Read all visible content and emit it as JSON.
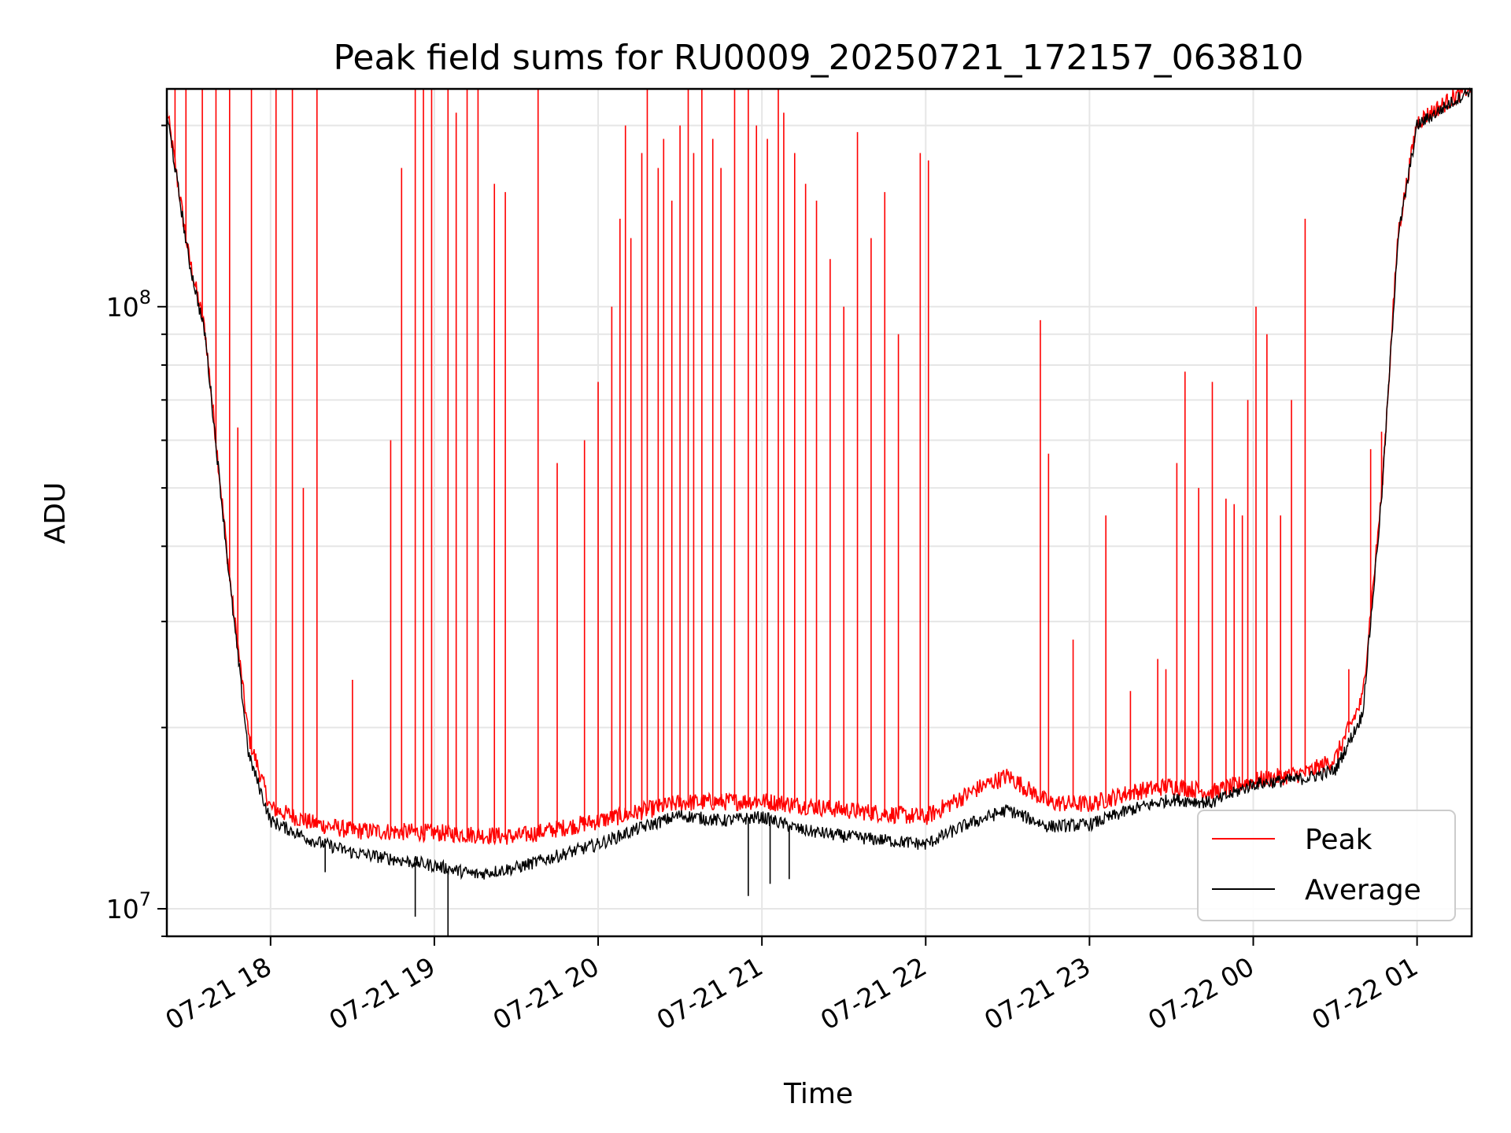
{
  "chart_data": {
    "type": "line",
    "title": "Peak field sums for RU0009_20250721_172157_063810",
    "xlabel": "Time",
    "ylabel": "ADU",
    "y_scale": "log",
    "ylim": [
      9000000,
      230000000
    ],
    "xlim": [
      "2025-07-21 17:22",
      "2025-07-22 01:20"
    ],
    "x_ticks": [
      {
        "label": "07-21 18",
        "time": "2025-07-21 18:00"
      },
      {
        "label": "07-21 19",
        "time": "2025-07-21 19:00"
      },
      {
        "label": "07-21 20",
        "time": "2025-07-21 20:00"
      },
      {
        "label": "07-21 21",
        "time": "2025-07-21 21:00"
      },
      {
        "label": "07-21 22",
        "time": "2025-07-21 22:00"
      },
      {
        "label": "07-21 23",
        "time": "2025-07-21 23:00"
      },
      {
        "label": "07-22 00",
        "time": "2025-07-22 00:00"
      },
      {
        "label": "07-22 01",
        "time": "2025-07-22 01:00"
      }
    ],
    "y_ticks": [
      {
        "base": "10",
        "exp": "7",
        "value": 10000000
      },
      {
        "base": "10",
        "exp": "8",
        "value": 100000000
      }
    ],
    "grid": true,
    "legend_position": "lower-right",
    "series": [
      {
        "name": "Peak",
        "color": "#ff0000",
        "baseline": [
          [
            "2025-07-21 17:22",
            210000000
          ],
          [
            "2025-07-21 17:30",
            120000000
          ],
          [
            "2025-07-21 17:36",
            90000000
          ],
          [
            "2025-07-21 17:45",
            35000000
          ],
          [
            "2025-07-21 17:52",
            19000000
          ],
          [
            "2025-07-21 18:00",
            14500000
          ],
          [
            "2025-07-21 18:15",
            13700000
          ],
          [
            "2025-07-21 18:30",
            13300000
          ],
          [
            "2025-07-21 19:00",
            13200000
          ],
          [
            "2025-07-21 19:30",
            13000000
          ],
          [
            "2025-07-21 20:00",
            13800000
          ],
          [
            "2025-07-21 20:30",
            14800000
          ],
          [
            "2025-07-21 21:00",
            14900000
          ],
          [
            "2025-07-21 21:30",
            14400000
          ],
          [
            "2025-07-21 22:00",
            14000000
          ],
          [
            "2025-07-21 22:20",
            15700000
          ],
          [
            "2025-07-21 22:30",
            16400000
          ],
          [
            "2025-07-21 22:45",
            14800000
          ],
          [
            "2025-07-21 23:00",
            14700000
          ],
          [
            "2025-07-21 23:15",
            15400000
          ],
          [
            "2025-07-21 23:30",
            15800000
          ],
          [
            "2025-07-21 23:45",
            15400000
          ],
          [
            "2025-07-22 00:00",
            16100000
          ],
          [
            "2025-07-22 00:20",
            16600000
          ],
          [
            "2025-07-22 00:30",
            17500000
          ],
          [
            "2025-07-22 00:40",
            22000000
          ],
          [
            "2025-07-22 00:47",
            48000000
          ],
          [
            "2025-07-22 00:53",
            130000000
          ],
          [
            "2025-07-22 01:00",
            200000000
          ],
          [
            "2025-07-22 01:20",
            230000000
          ]
        ],
        "spikes": [
          [
            "2025-07-21 17:25",
            230000000
          ],
          [
            "2025-07-21 17:29",
            230000000
          ],
          [
            "2025-07-21 17:35",
            230000000
          ],
          [
            "2025-07-21 17:40",
            230000000
          ],
          [
            "2025-07-21 17:45",
            230000000
          ],
          [
            "2025-07-21 17:48",
            63000000
          ],
          [
            "2025-07-21 17:53",
            230000000
          ],
          [
            "2025-07-21 18:02",
            230000000
          ],
          [
            "2025-07-21 18:08",
            230000000
          ],
          [
            "2025-07-21 18:12",
            50000000
          ],
          [
            "2025-07-21 18:17",
            230000000
          ],
          [
            "2025-07-21 18:30",
            24000000
          ],
          [
            "2025-07-21 18:44",
            60000000
          ],
          [
            "2025-07-21 18:48",
            170000000
          ],
          [
            "2025-07-21 18:53",
            230000000
          ],
          [
            "2025-07-21 18:56",
            230000000
          ],
          [
            "2025-07-21 18:59",
            230000000
          ],
          [
            "2025-07-21 19:05",
            230000000
          ],
          [
            "2025-07-21 19:08",
            210000000
          ],
          [
            "2025-07-21 19:12",
            230000000
          ],
          [
            "2025-07-21 19:16",
            230000000
          ],
          [
            "2025-07-21 19:22",
            160000000
          ],
          [
            "2025-07-21 19:26",
            155000000
          ],
          [
            "2025-07-21 19:38",
            230000000
          ],
          [
            "2025-07-21 19:45",
            55000000
          ],
          [
            "2025-07-21 19:55",
            60000000
          ],
          [
            "2025-07-21 20:00",
            75000000
          ],
          [
            "2025-07-21 20:05",
            100000000
          ],
          [
            "2025-07-21 20:08",
            140000000
          ],
          [
            "2025-07-21 20:10",
            200000000
          ],
          [
            "2025-07-21 20:12",
            130000000
          ],
          [
            "2025-07-21 20:16",
            180000000
          ],
          [
            "2025-07-21 20:18",
            230000000
          ],
          [
            "2025-07-21 20:22",
            170000000
          ],
          [
            "2025-07-21 20:24",
            190000000
          ],
          [
            "2025-07-21 20:27",
            150000000
          ],
          [
            "2025-07-21 20:30",
            200000000
          ],
          [
            "2025-07-21 20:33",
            230000000
          ],
          [
            "2025-07-21 20:35",
            180000000
          ],
          [
            "2025-07-21 20:38",
            230000000
          ],
          [
            "2025-07-21 20:42",
            190000000
          ],
          [
            "2025-07-21 20:45",
            170000000
          ],
          [
            "2025-07-21 20:50",
            230000000
          ],
          [
            "2025-07-21 20:55",
            230000000
          ],
          [
            "2025-07-21 20:58",
            200000000
          ],
          [
            "2025-07-21 21:02",
            190000000
          ],
          [
            "2025-07-21 21:06",
            230000000
          ],
          [
            "2025-07-21 21:08",
            210000000
          ],
          [
            "2025-07-21 21:12",
            180000000
          ],
          [
            "2025-07-21 21:16",
            160000000
          ],
          [
            "2025-07-21 21:20",
            150000000
          ],
          [
            "2025-07-21 21:25",
            120000000
          ],
          [
            "2025-07-21 21:30",
            100000000
          ],
          [
            "2025-07-21 21:35",
            195000000
          ],
          [
            "2025-07-21 21:40",
            130000000
          ],
          [
            "2025-07-21 21:45",
            155000000
          ],
          [
            "2025-07-21 21:50",
            90000000
          ],
          [
            "2025-07-21 21:58",
            180000000
          ],
          [
            "2025-07-21 22:01",
            175000000
          ],
          [
            "2025-07-21 22:42",
            95000000
          ],
          [
            "2025-07-21 22:45",
            57000000
          ],
          [
            "2025-07-21 22:54",
            28000000
          ],
          [
            "2025-07-21 23:06",
            45000000
          ],
          [
            "2025-07-21 23:15",
            23000000
          ],
          [
            "2025-07-21 23:25",
            26000000
          ],
          [
            "2025-07-21 23:28",
            25000000
          ],
          [
            "2025-07-21 23:32",
            55000000
          ],
          [
            "2025-07-21 23:35",
            78000000
          ],
          [
            "2025-07-21 23:40",
            50000000
          ],
          [
            "2025-07-21 23:45",
            75000000
          ],
          [
            "2025-07-21 23:50",
            48000000
          ],
          [
            "2025-07-21 23:53",
            47000000
          ],
          [
            "2025-07-21 23:56",
            45000000
          ],
          [
            "2025-07-21 23:58",
            70000000
          ],
          [
            "2025-07-22 00:01",
            100000000
          ],
          [
            "2025-07-22 00:05",
            90000000
          ],
          [
            "2025-07-22 00:10",
            45000000
          ],
          [
            "2025-07-22 00:14",
            70000000
          ],
          [
            "2025-07-22 00:19",
            140000000
          ],
          [
            "2025-07-22 00:35",
            25000000
          ],
          [
            "2025-07-22 00:43",
            58000000
          ],
          [
            "2025-07-22 00:47",
            62000000
          ]
        ]
      },
      {
        "name": "Average",
        "color": "#000000",
        "points": [
          [
            "2025-07-21 17:22",
            210000000
          ],
          [
            "2025-07-21 17:30",
            120000000
          ],
          [
            "2025-07-21 17:36",
            90000000
          ],
          [
            "2025-07-21 17:45",
            35000000
          ],
          [
            "2025-07-21 17:52",
            18000000
          ],
          [
            "2025-07-21 18:00",
            14000000
          ],
          [
            "2025-07-21 18:15",
            13000000
          ],
          [
            "2025-07-21 18:30",
            12400000
          ],
          [
            "2025-07-21 19:00",
            11800000
          ],
          [
            "2025-07-21 19:15",
            11400000
          ],
          [
            "2025-07-21 19:30",
            11700000
          ],
          [
            "2025-07-21 20:00",
            12800000
          ],
          [
            "2025-07-21 20:15",
            13600000
          ],
          [
            "2025-07-21 20:30",
            14300000
          ],
          [
            "2025-07-21 20:45",
            14000000
          ],
          [
            "2025-07-21 21:00",
            14200000
          ],
          [
            "2025-07-21 21:15",
            13500000
          ],
          [
            "2025-07-21 21:30",
            13200000
          ],
          [
            "2025-07-21 22:00",
            12800000
          ],
          [
            "2025-07-21 22:15",
            13800000
          ],
          [
            "2025-07-21 22:30",
            14600000
          ],
          [
            "2025-07-21 22:45",
            13700000
          ],
          [
            "2025-07-21 23:00",
            13800000
          ],
          [
            "2025-07-21 23:15",
            14600000
          ],
          [
            "2025-07-21 23:30",
            15200000
          ],
          [
            "2025-07-21 23:45",
            15000000
          ],
          [
            "2025-07-22 00:00",
            16100000
          ],
          [
            "2025-07-22 00:20",
            16500000
          ],
          [
            "2025-07-22 00:30",
            17000000
          ],
          [
            "2025-07-22 00:40",
            21000000
          ],
          [
            "2025-07-22 00:47",
            48000000
          ],
          [
            "2025-07-22 00:53",
            130000000
          ],
          [
            "2025-07-22 01:00",
            200000000
          ],
          [
            "2025-07-22 01:20",
            230000000
          ]
        ],
        "dips": [
          [
            "2025-07-21 18:20",
            11500000
          ],
          [
            "2025-07-21 18:53",
            9700000
          ],
          [
            "2025-07-21 19:05",
            9000000
          ],
          [
            "2025-07-21 20:55",
            10500000
          ],
          [
            "2025-07-21 21:03",
            11000000
          ],
          [
            "2025-07-21 21:10",
            11200000
          ]
        ]
      }
    ]
  }
}
